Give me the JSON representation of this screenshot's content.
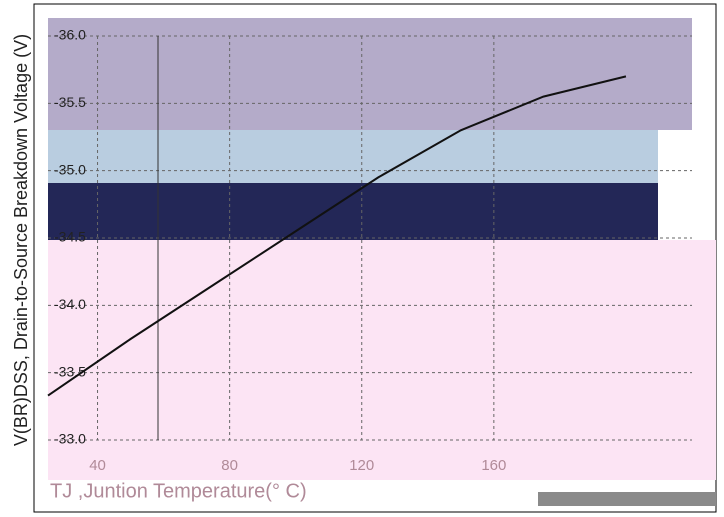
{
  "chart_data": {
    "type": "line",
    "x_label": "TJ ,Juntion Temperature(° C)",
    "y_label": "V(BR)DSS, Drain-to-Source Breakdown Voltage (V)",
    "x": [
      25,
      50,
      75,
      100,
      125,
      150,
      175,
      200
    ],
    "values": [
      -33.33,
      -33.75,
      -34.15,
      -34.55,
      -34.95,
      -35.3,
      -35.55,
      -35.7
    ],
    "color": "#111111",
    "xlim": [
      25,
      220
    ],
    "xticks": [
      40,
      80,
      120,
      160
    ],
    "ylim": [
      -33.0,
      -36.0
    ],
    "yticks": [
      {
        "value": -36,
        "label": "-36.0"
      },
      -35.5,
      {
        "value": -35,
        "label": "-35.0"
      },
      -34.5,
      {
        "value": -34,
        "label": "-34.0"
      },
      -33.5,
      {
        "value": -33,
        "label": "-33.0"
      }
    ],
    "grid": true
  }
}
